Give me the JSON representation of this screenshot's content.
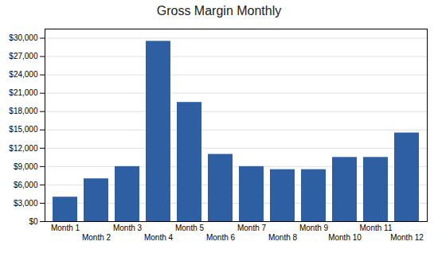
{
  "chart_data": {
    "type": "bar",
    "title": "Gross Margin Monthly",
    "categories": [
      "Month 1",
      "Month 2",
      "Month 3",
      "Month 4",
      "Month 5",
      "Month 6",
      "Month 7",
      "Month 8",
      "Month 9",
      "Month 10",
      "Month 11",
      "Month 12"
    ],
    "values": [
      4000,
      7000,
      9000,
      29500,
      19500,
      11000,
      9000,
      8500,
      8500,
      10500,
      10500,
      14500
    ],
    "color": "#2E5FA3",
    "ylim": [
      0,
      31500
    ],
    "yticks": [
      {
        "value": 0,
        "label": "$0"
      },
      {
        "value": 3000,
        "label": "$3,000"
      },
      {
        "value": 6000,
        "label": "$6,000"
      },
      {
        "value": 9000,
        "label": "$9,000"
      },
      {
        "value": 12000,
        "label": "$12,000"
      },
      {
        "value": 15000,
        "label": "$15,000"
      },
      {
        "value": 18000,
        "label": "$18,000"
      },
      {
        "value": 21000,
        "label": "$21,000"
      },
      {
        "value": 24000,
        "label": "$24,000"
      },
      {
        "value": 27000,
        "label": "$27,000"
      },
      {
        "value": 30000,
        "label": "$30,000"
      }
    ],
    "grid": true
  }
}
